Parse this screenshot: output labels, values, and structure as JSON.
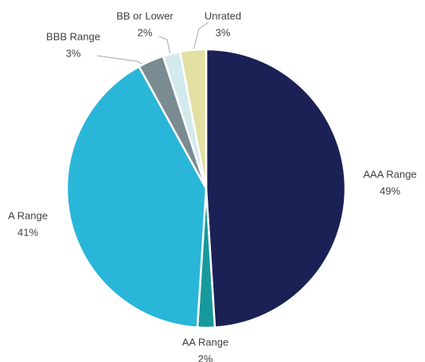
{
  "chart_data": {
    "type": "pie",
    "categories": [
      "AAA Range",
      "AA Range",
      "A Range",
      "BBB Range",
      "BB or Lower",
      "Unrated"
    ],
    "values": [
      49,
      2,
      41,
      3,
      2,
      3
    ],
    "value_labels": [
      "49%",
      "2%",
      "41%",
      "3%",
      "2%",
      "3%"
    ],
    "colors": [
      "#1b2155",
      "#17999b",
      "#29b6d9",
      "#7b8b92",
      "#d3eaed",
      "#e2dfa2"
    ]
  }
}
